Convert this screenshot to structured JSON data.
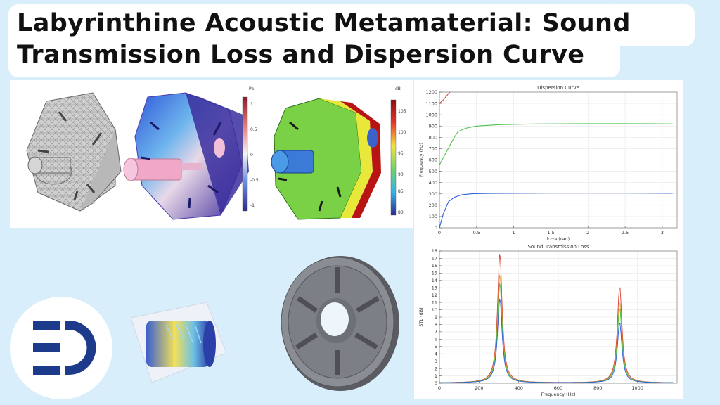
{
  "title": {
    "line1": "Labyrinthine  Acoustic  Metamaterial:  Sound",
    "line2": "Transmission Loss and Dispersion Curve"
  },
  "sim_panel": {
    "colorbar_pressure": {
      "unit": "Pa",
      "ticks": [
        "1",
        "0.5",
        "0",
        "-0.5",
        "-1"
      ]
    },
    "colorbar_spl": {
      "unit": "dB",
      "ticks": [
        "105",
        "100",
        "95",
        "90",
        "85",
        "80"
      ]
    }
  },
  "colors": {
    "blue": "#2a5fd6",
    "green": "#4cc24c",
    "red": "#d63c2c",
    "orange": "#e6a12a",
    "logo_navy": "#1e3a8a"
  },
  "chart_data": [
    {
      "type": "line",
      "title": "Dispersion Curve",
      "xlabel": "kz*a (rad)",
      "ylabel": "Frequency (Hz)",
      "xlim": [
        0,
        3.2
      ],
      "ylim": [
        0,
        1200
      ],
      "xticks": [
        "0",
        "0.5",
        "1",
        "1.5",
        "2",
        "2.5",
        "3"
      ],
      "yticks": [
        "0",
        "100",
        "200",
        "300",
        "400",
        "500",
        "600",
        "700",
        "800",
        "900",
        "1000",
        "1100",
        "1200"
      ],
      "grid": true,
      "series": [
        {
          "color": "#2a5fd6",
          "x": [
            0,
            0.05,
            0.12,
            0.2,
            0.3,
            0.45,
            0.7,
            1.0,
            1.5,
            2.0,
            2.5,
            3.14
          ],
          "y": [
            0,
            120,
            230,
            270,
            292,
            302,
            305,
            306,
            307,
            307,
            307,
            306
          ]
        },
        {
          "color": "#4cc24c",
          "x": [
            0,
            0.1,
            0.2,
            0.25,
            0.35,
            0.5,
            0.8,
            1.2,
            1.8,
            2.4,
            3.14
          ],
          "y": [
            555,
            680,
            800,
            850,
            880,
            900,
            912,
            918,
            920,
            921,
            919
          ]
        },
        {
          "color": "#d63c2c",
          "x": [
            0,
            0.05,
            0.1,
            0.14
          ],
          "y": [
            1100,
            1130,
            1170,
            1200
          ]
        }
      ]
    },
    {
      "type": "line",
      "title": "Sound Transmission Loss",
      "xlabel": "Frequency (Hz)",
      "ylabel": "STL (dB)",
      "xlim": [
        0,
        1200
      ],
      "ylim": [
        0,
        18
      ],
      "xticks": [
        "0",
        "200",
        "400",
        "600",
        "800",
        "1000"
      ],
      "yticks": [
        "0",
        "1",
        "2",
        "3",
        "4",
        "5",
        "6",
        "7",
        "8",
        "9",
        "10",
        "11",
        "12",
        "13",
        "14",
        "15",
        "16",
        "17",
        "18"
      ],
      "grid": true,
      "series": [
        {
          "color": "#d63c2c",
          "peaks": [
            {
              "f": 305,
              "h": 17.6
            },
            {
              "f": 910,
              "h": 13.2
            }
          ]
        },
        {
          "color": "#e6a12a",
          "peaks": [
            {
              "f": 305,
              "h": 14.8
            },
            {
              "f": 910,
              "h": 11.0
            }
          ]
        },
        {
          "color": "#4cc24c",
          "peaks": [
            {
              "f": 305,
              "h": 13.6
            },
            {
              "f": 910,
              "h": 10.2
            }
          ]
        },
        {
          "color": "#2a5fd6",
          "peaks": [
            {
              "f": 305,
              "h": 11.5
            },
            {
              "f": 910,
              "h": 8.2
            }
          ]
        }
      ]
    }
  ]
}
